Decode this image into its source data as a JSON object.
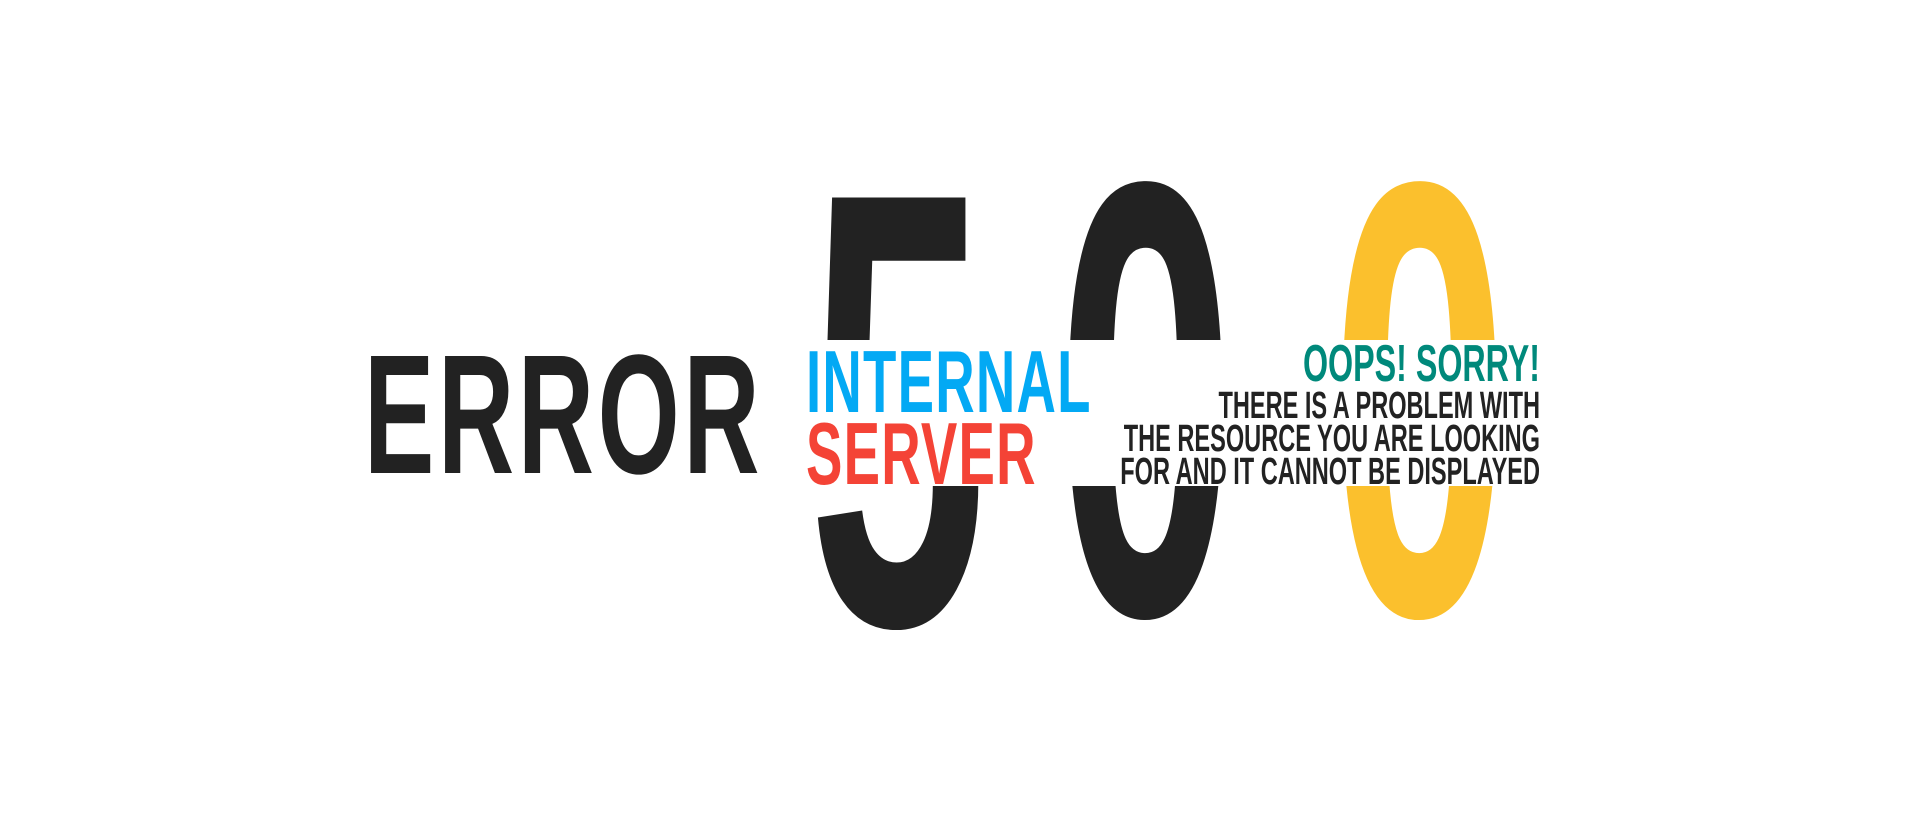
{
  "error_label": "ERROR",
  "code": {
    "digit1": "5",
    "digit2": "0",
    "digit3": "0"
  },
  "subtitle": {
    "line1": "INTERNAL",
    "line2": "SERVER"
  },
  "message": {
    "headline": "OOPS! SORRY!",
    "line1": "THERE IS A PROBLEM WITH",
    "line2": "THE RESOURCE YOU ARE LOOKING",
    "line3": "FOR AND IT CANNOT BE DISPLAYED"
  },
  "colors": {
    "dark": "#222222",
    "accent_yellow": "#fbc02d",
    "internal_blue": "#03a9f4",
    "server_red": "#f44336",
    "oops_teal": "#00897b"
  }
}
